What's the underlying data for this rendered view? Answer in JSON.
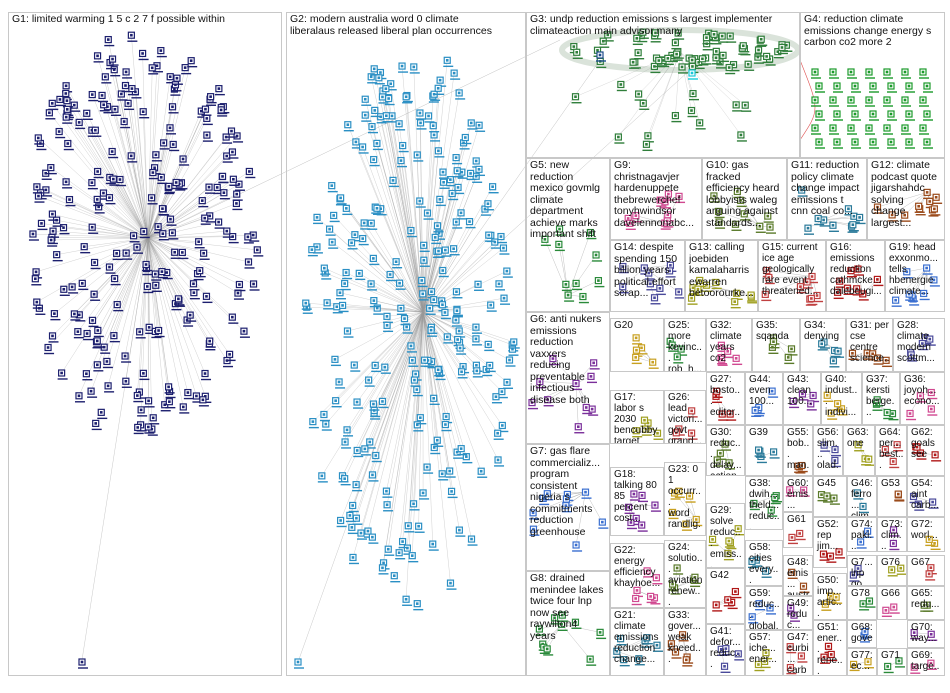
{
  "groups": [
    {
      "id": "G1",
      "label": "G1: limited warming 1 5 c 2 7 f possible within"
    },
    {
      "id": "G2",
      "label": "G2: modern australia word 0 climate\nliberalaus released liberal plan occurrences"
    },
    {
      "id": "G3",
      "label": "G3: undp reduction emissions s largest implementer\nclimateaction main advisor many"
    },
    {
      "id": "G4",
      "label": "G4: reduction climate\nemissions change energy s\ncarbon co2 more 2"
    },
    {
      "id": "G5",
      "label": "G5: new\nreduction\nmexico govmlg\nclimate\ndepartment\nachieve marks\nimportant shift"
    },
    {
      "id": "G9",
      "label": "G9:\nchristnagavjer\nhardenuppete\nthebrewerchef\ntonyhwindsor\ndavelennonabc..."
    },
    {
      "id": "G10",
      "label": "G10: gas\nfracked\nefficiency heard\nlobbyists waleg\narguing against\nstandards..."
    },
    {
      "id": "G11",
      "label": "G11: reduction\npolicy climate\nchange impact\nemissions t\ncnn coal co..."
    },
    {
      "id": "G12",
      "label": "G12: climate\npodcast quote\njigarshahdc\nsolving\nchange\nlargest..."
    },
    {
      "id": "G14",
      "label": "G14: despite\nspending 150\nbillion years\npolitical effort\nscrap..."
    },
    {
      "id": "G13",
      "label": "G13: calling\njoebiden\nkamalaharris\newarren\nbetoorourke..."
    },
    {
      "id": "G15",
      "label": "G15: current\nice age\ngeologically\nrare event\nthreatened..."
    },
    {
      "id": "G16",
      "label": "G16:\nemissions\nreduction\ncathmcke...\ndalebeugi..."
    },
    {
      "id": "G19",
      "label": "G19: head\nexxonmo...\ntells\nhbenergie\nclimate..."
    },
    {
      "id": "G6",
      "label": "G6: anti nukers\nemissions\nreduction\nvaxxers\nreducing\npreventable\ninfectious\ndisease both"
    },
    {
      "id": "G20",
      "label": "G20"
    },
    {
      "id": "G25",
      "label": "G25:\nmore\nkevinc...\nrob_h...\nbeisgo..."
    },
    {
      "id": "G32",
      "label": "G32:\nclimate\nyears\nco2"
    },
    {
      "id": "G35",
      "label": "G35:\nsqanda"
    },
    {
      "id": "G34",
      "label": "G34:\ndenying"
    },
    {
      "id": "G31",
      "label": "G31: per\ncse\ncentre\nscience..."
    },
    {
      "id": "G28",
      "label": "G28:\nclimate\nmodern\nscottm..."
    },
    {
      "id": "G17",
      "label": "G17:\nlabor s\n2030\nbencubby\ntarget 45..."
    },
    {
      "id": "G26",
      "label": "G26:\nlead\nvictori...\ngovt\ngrand..."
    },
    {
      "id": "G27",
      "label": "G27:\nbosto...\neditor...\nboard..."
    },
    {
      "id": "G44",
      "label": "G44:\neven\n100..."
    },
    {
      "id": "G43",
      "label": "G43:\nclean\n100..."
    },
    {
      "id": "G40",
      "label": "G40:\nindust...\nindivi..."
    },
    {
      "id": "G37",
      "label": "G37:\nkersti\nberge..."
    },
    {
      "id": "G36",
      "label": "G36:\njoyoh...\necono..."
    },
    {
      "id": "G30",
      "label": "G30:\nreduc...\ndelay...\naction..."
    },
    {
      "id": "G39",
      "label": "G39"
    },
    {
      "id": "G55",
      "label": "G55:\nbob...\nman..."
    },
    {
      "id": "G56",
      "label": "G56:\nslim...\nolad..."
    },
    {
      "id": "G63",
      "label": "G63:\none"
    },
    {
      "id": "G64",
      "label": "G64:\nper...\nbest..."
    },
    {
      "id": "G62",
      "label": "G62:\ngoals\nsee"
    },
    {
      "id": "G7",
      "label": "G7: gas flare\ncommercializ...\nprogram\nconsistent\nnigeria s\ncommitments\nreduction\ngreenhouse"
    },
    {
      "id": "G18",
      "label": "G18:\ntalking 80\n85\npercent\ncost..."
    },
    {
      "id": "G23",
      "label": "G23: 0\n1\noccurr...\nword\nrandlig..."
    },
    {
      "id": "G38",
      "label": "G38:\ndwih...\ntheld...\nreduc..."
    },
    {
      "id": "G60",
      "label": "G60:\nemis...\ns"
    },
    {
      "id": "G45",
      "label": "G45"
    },
    {
      "id": "G46",
      "label": "G46:\nferro...\nclim..."
    },
    {
      "id": "G53",
      "label": "G53"
    },
    {
      "id": "G54",
      "label": "G54:\naint\ncarb..."
    },
    {
      "id": "G29",
      "label": "G29:\nsolve\nreduc...\nemiss..."
    },
    {
      "id": "G61",
      "label": "G61"
    },
    {
      "id": "G52",
      "label": "G52:\nrep\njim..."
    },
    {
      "id": "G74",
      "label": "G74:\npaki...\ncli..."
    },
    {
      "id": "G73",
      "label": "G73:\nclim..."
    },
    {
      "id": "G72",
      "label": "G72:\nworl..."
    },
    {
      "id": "G8",
      "label": "G8: drained\nmenindee lakes\ntwice four lnp\nnow see\nraywilton4\nyears"
    },
    {
      "id": "G22",
      "label": "G22:\nenergy\nefficiency\nkhayhoe..."
    },
    {
      "id": "G24",
      "label": "G24:\nsolutio...\naviation\nrenew...\njet fuel..."
    },
    {
      "id": "G58",
      "label": "G58:\ncities\nevery..."
    },
    {
      "id": "G48",
      "label": "G48:\nemis...\naustr..."
    },
    {
      "id": "G7x",
      "label": "G7...\nlnp\ngo..."
    },
    {
      "id": "G76",
      "label": "G76"
    },
    {
      "id": "G67",
      "label": "G67"
    },
    {
      "id": "G42",
      "label": "G42"
    },
    {
      "id": "G59",
      "label": "G59:\nreduc...\nglobal..."
    },
    {
      "id": "G49",
      "label": "G49:\nreduc..."
    },
    {
      "id": "G50",
      "label": "G50:\nimp...\nartic..."
    },
    {
      "id": "G78",
      "label": "G78"
    },
    {
      "id": "G66",
      "label": "G66"
    },
    {
      "id": "G65",
      "label": "G65:\nredu..."
    },
    {
      "id": "G21",
      "label": "G21:\nclimate\nemissions\nreduction\nchange..."
    },
    {
      "id": "G33",
      "label": "G33:\ngover...\nweak\nkneed..."
    },
    {
      "id": "G41",
      "label": "G41:\ndefor...\nreduc..."
    },
    {
      "id": "G57",
      "label": "G57:\niche...\nener..."
    },
    {
      "id": "G47",
      "label": "G47:\ncurbi...\ncarbo..."
    },
    {
      "id": "G51",
      "label": "G51:\nener...\nrene..."
    },
    {
      "id": "G68",
      "label": "G68:\ngove..."
    },
    {
      "id": "G70",
      "label": "G70:\nway..."
    },
    {
      "id": "G77",
      "label": "G77:\nec..."
    },
    {
      "id": "G71",
      "label": "G71"
    },
    {
      "id": "G69",
      "label": "G69:\ntarge..."
    }
  ],
  "colors": {
    "G1": "#1c1f6e",
    "G2": "#2a8fc4",
    "G3": "#2f7e3a",
    "G4": "#1a9a2a",
    "edge": "#9a9a9a",
    "cell_border": "#c8c8c8",
    "highlight": "#19c9d8"
  }
}
